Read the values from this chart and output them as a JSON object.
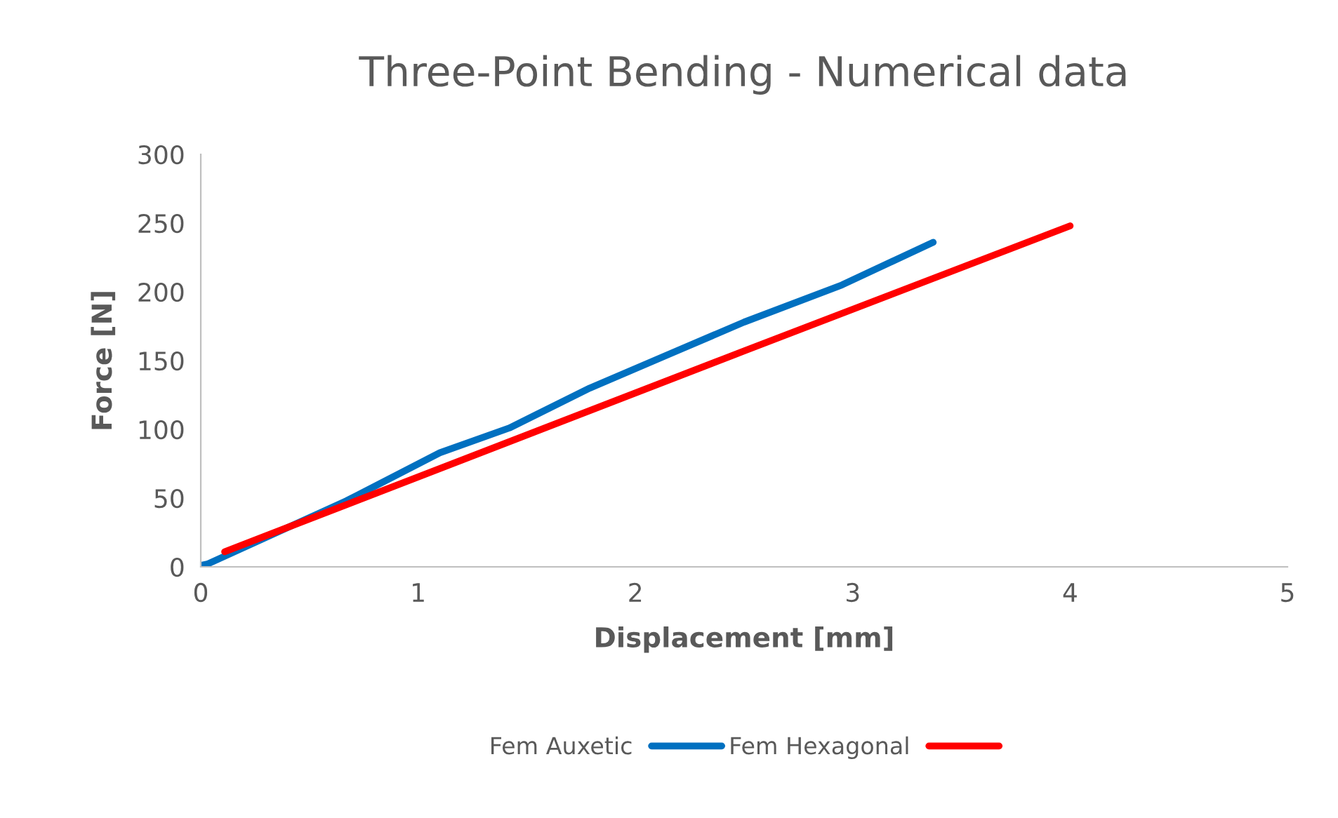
{
  "chart_data": {
    "type": "line",
    "title": "Three-Point Bending - Numerical data",
    "xlabel": "Displacement [mm]",
    "ylabel": "Force [N]",
    "xlim": [
      0,
      5
    ],
    "xticks": [
      0,
      1,
      2,
      3,
      4,
      5
    ],
    "ylim": [
      0,
      300
    ],
    "yticks": [
      0,
      50,
      100,
      150,
      200,
      250,
      300
    ],
    "grid": false,
    "legend": "bottom",
    "marker": "none",
    "line_style": "solid",
    "series": [
      {
        "name": "Fem Auxetic",
        "color": "#0070c0",
        "x": [
          0,
          0.03,
          0.67,
          1.1,
          1.42,
          1.79,
          2.5,
          2.95,
          3.37
        ],
        "values": [
          1,
          2,
          48,
          83,
          101,
          130,
          178,
          205,
          236
        ]
      },
      {
        "name": "Fem Hexagonal",
        "color": "#ff0000",
        "x": [
          0.11,
          2.5,
          4.0
        ],
        "values": [
          11,
          157,
          248
        ]
      }
    ]
  }
}
